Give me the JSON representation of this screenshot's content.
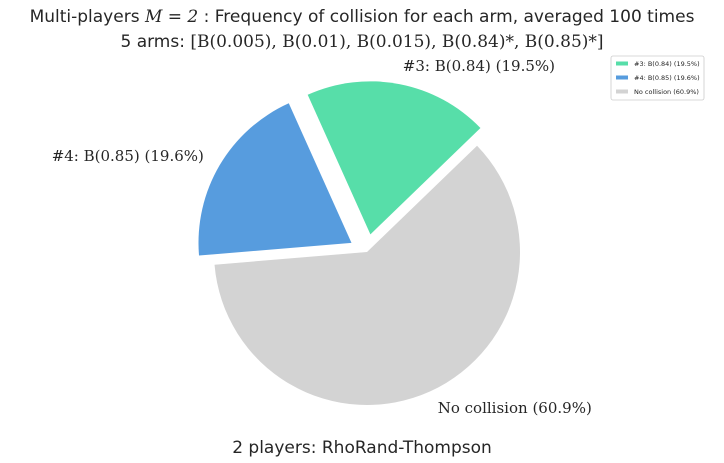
{
  "chart_data": {
    "type": "pie",
    "title_prefix": "Multi-players ",
    "title_math": "M = 2",
    "title_suffix": " : Frequency of collision for each arm, averaged 100 times",
    "subtitle_prefix": "5 arms: ",
    "subtitle_math": "[B(0.005), B(0.01), B(0.015), B(0.84)*, B(0.85)*]",
    "xlabel": "2 players: RhoRand-Thompson",
    "slices": [
      {
        "label": "#3: B(0.84)",
        "percent_text": "(19.5%)",
        "legend": "#3: B(0.84) (19.5%)",
        "value": 19.5,
        "color": "#57dea9",
        "explode": true
      },
      {
        "label": "#4: B(0.85)",
        "percent_text": "(19.6%)",
        "legend": "#4: B(0.85) (19.6%)",
        "value": 19.6,
        "color": "#579cde",
        "explode": true
      },
      {
        "label": "No collision",
        "percent_text": "(60.9%)",
        "legend": "No collision (60.9%)",
        "value": 60.9,
        "color": "#d3d3d3",
        "explode": false
      }
    ],
    "legend_position": "top-right"
  }
}
